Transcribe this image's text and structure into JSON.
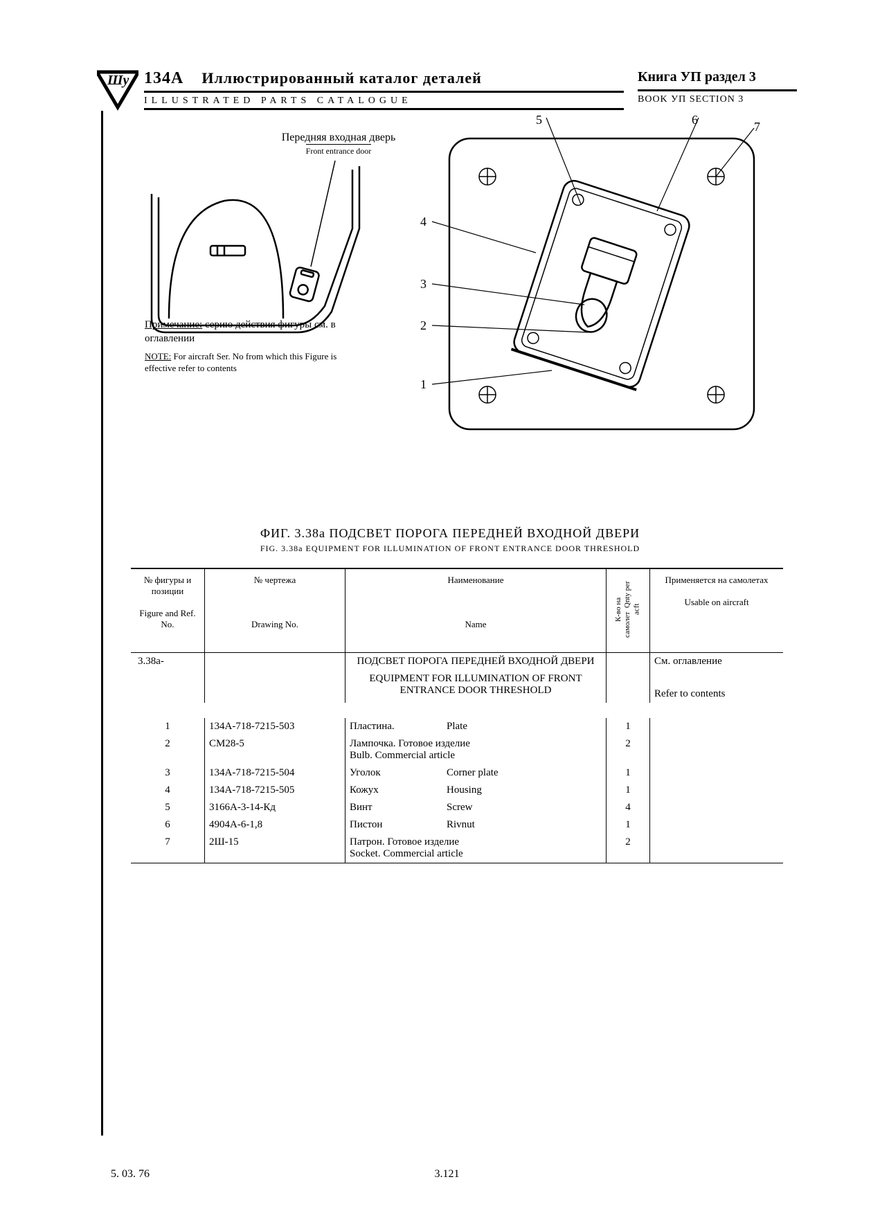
{
  "header": {
    "model": "134A",
    "title_ru": "Иллюстрированный каталог деталей",
    "title_en": "ILLUSTRATED PARTS CATALOGUE",
    "book_ru": "Книга УП раздел 3",
    "book_en": "BOOK УП SECTION 3"
  },
  "figure": {
    "door_label_ru": "Передняя входная дверь",
    "door_label_en": "Front entrance door",
    "note_ru_u": "Примечание:",
    "note_ru": " серию действия фигуры см. в оглавлении",
    "note_en_u": "NOTE:",
    "note_en": " For aircraft Ser. No from which this Figure is effective refer to contents",
    "callouts": {
      "n1": "1",
      "n2": "2",
      "n3": "3",
      "n4": "4",
      "n5": "5",
      "n6": "6",
      "n7": "7"
    },
    "title_ru": "ФИГ. 3.38а ПОДСВЕТ ПОРОГА ПЕРЕДНЕЙ ВХОДНОЙ   ДВЕРИ",
    "title_en": "FIG. 3.38a EQUIPMENT FOR ILLUMINATION OF FRONT ENTRANCE DOOR THRESHOLD"
  },
  "table": {
    "headers": {
      "ref_ru": "№ фигуры и позиции",
      "ref_en": "Figure and Ref. No.",
      "draw_ru": "№ чертежа",
      "draw_en": "Drawing No.",
      "name_ru": "Наименование",
      "name_en": "Name",
      "qty_ru": "К-во на самолет",
      "qty_en": "Qnty per acft",
      "use_ru": "Применяется на самолетах",
      "use_en": "Usable on aircraft"
    },
    "group": {
      "ref": "3.38а-",
      "name_ru": "ПОДСВЕТ ПОРОГА ПЕРЕДНЕЙ ВХОДНОЙ ДВЕРИ",
      "name_en": "EQUIPMENT FOR ILLUMINATION OF FRONT ENTRANCE DOOR THRESHOLD",
      "use_ru": "См. оглавление",
      "use_en": "Refer to contents"
    },
    "rows": [
      {
        "ref": "1",
        "draw": "134A-718-7215-503",
        "name_ru": "Пластина.",
        "name_en": "Plate",
        "qty": "1"
      },
      {
        "ref": "2",
        "draw": "СМ28-5",
        "name_ru": "Лампочка. Готовое изделие",
        "name_en": "Bulb. Commercial article",
        "qty": "2",
        "wrap": true
      },
      {
        "ref": "3",
        "draw": "134A-718-7215-504",
        "name_ru": "Уголок",
        "name_en": "Corner plate",
        "qty": "1"
      },
      {
        "ref": "4",
        "draw": "134A-718-7215-505",
        "name_ru": "Кожух",
        "name_en": "Housing",
        "qty": "1"
      },
      {
        "ref": "5",
        "draw": "3166А-3-14-Кд",
        "name_ru": "Винт",
        "name_en": "Screw",
        "qty": "4"
      },
      {
        "ref": "6",
        "draw": "4904А-6-1,8",
        "name_ru": "Пистон",
        "name_en": "Rivnut",
        "qty": "1"
      },
      {
        "ref": "7",
        "draw": "2Ш-15",
        "name_ru": "Патрон. Готовое изделие",
        "name_en": "Socket. Commercial article",
        "qty": "2",
        "wrap": true
      }
    ]
  },
  "footer": {
    "date": "5. 03. 76",
    "page": "3.121"
  }
}
